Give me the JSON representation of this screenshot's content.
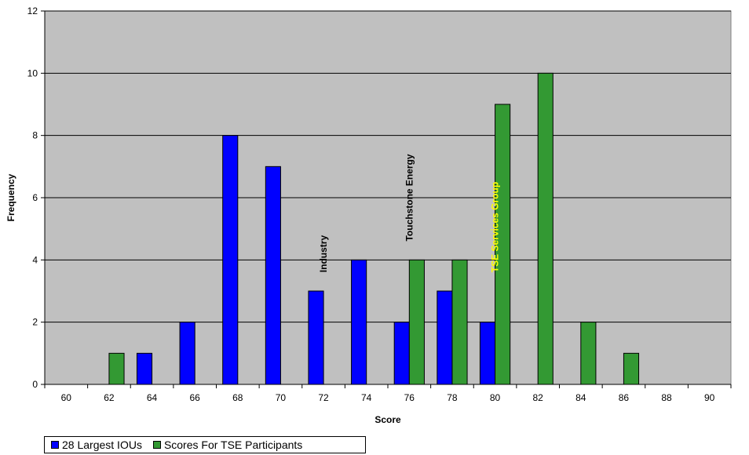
{
  "chart_data": {
    "type": "bar",
    "categories": [
      "60",
      "62",
      "64",
      "66",
      "68",
      "70",
      "72",
      "74",
      "76",
      "78",
      "80",
      "82",
      "84",
      "86",
      "88",
      "90"
    ],
    "series": [
      {
        "name": "28 Largest IOUs",
        "color": "#0000ff",
        "values": [
          0,
          0,
          1,
          2,
          8,
          7,
          3,
          4,
          2,
          3,
          2,
          0,
          0,
          0,
          0,
          0
        ]
      },
      {
        "name": "Scores For TSE Participants",
        "color": "#339933",
        "values": [
          0,
          1,
          0,
          0,
          0,
          0,
          0,
          0,
          4,
          4,
          9,
          10,
          2,
          1,
          0,
          0
        ]
      }
    ],
    "xlabel": "Score",
    "ylabel": "Frequency",
    "ylim": [
      0,
      12
    ],
    "yticks": [
      0,
      2,
      4,
      6,
      8,
      10,
      12
    ],
    "grid": true,
    "plot_background": "#c0c0c0",
    "legend_position": "bottom-left",
    "annotations": [
      {
        "text": "Industry",
        "category": "72",
        "y": 3.6,
        "color": "#000000"
      },
      {
        "text": "Touchstone Energy",
        "category": "76",
        "y": 4.6,
        "color": "#000000"
      },
      {
        "text": "TSE Services Group",
        "category": "80",
        "y": 3.6,
        "color": "#ffff00"
      }
    ]
  }
}
